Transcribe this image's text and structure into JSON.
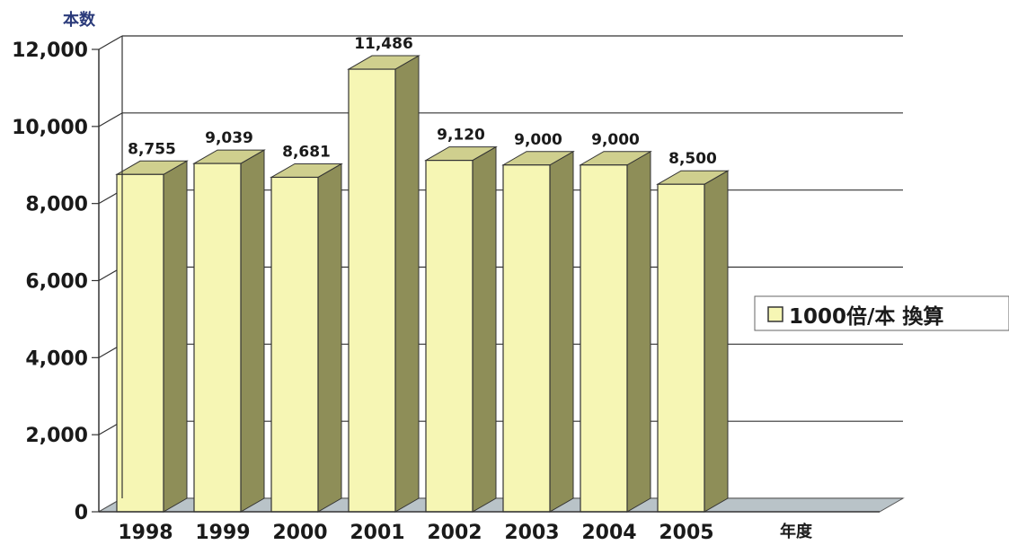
{
  "chart_data": {
    "type": "bar",
    "ylabel": "本数",
    "xlabel": "年度",
    "categories": [
      "1998",
      "1999",
      "2000",
      "2001",
      "2002",
      "2003",
      "2004",
      "2005"
    ],
    "series": [
      {
        "name": "1000倍/本 換算",
        "values": [
          8755,
          9039,
          8681,
          11486,
          9120,
          9000,
          9000,
          8500
        ]
      }
    ],
    "value_labels": [
      "8,755",
      "9,039",
      "8,681",
      "11,486",
      "9,120",
      "9,000",
      "9,000",
      "8,500"
    ],
    "ylim": [
      0,
      12000
    ],
    "yticks": [
      0,
      2000,
      4000,
      6000,
      8000,
      10000,
      12000
    ],
    "ytick_labels": [
      "0",
      "2,000",
      "4,000",
      "6,000",
      "8,000",
      "10,000",
      "12,000"
    ],
    "grid": true,
    "legend_position": "right",
    "three_d": true,
    "colors": {
      "bar_front": "#f6f6b4",
      "bar_side": "#8e8e58",
      "bar_top": "#cfcf8e",
      "floor": "#b9c3c8",
      "grid": "#333333",
      "ylabel_color": "#2a3a7a",
      "text": "#1a1a1a"
    }
  }
}
